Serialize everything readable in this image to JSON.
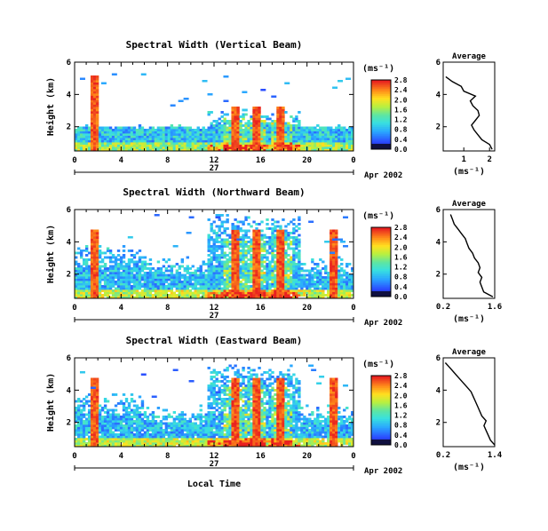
{
  "date_label": "Apr 2002",
  "day_label": "27",
  "xlabel": "Local Time",
  "units_label": "(ms⁻¹)",
  "chart_data": [
    {
      "type": "heatmap",
      "title": "Spectral Width (Vertical Beam)",
      "ylabel": "Height (km)",
      "xlabel": "",
      "xticks": [
        "0",
        "4",
        "8",
        "12",
        "16",
        "20",
        "0"
      ],
      "xlim": [
        0,
        24
      ],
      "yticks": [
        "6",
        "4",
        "2"
      ],
      "ylim": [
        0.5,
        6
      ],
      "colorbar": {
        "min": 0.0,
        "max": 2.8,
        "ticks": [
          "2.8",
          "2.4",
          "2.0",
          "1.6",
          "1.2",
          "0.8",
          "0.4",
          "0.0"
        ]
      },
      "high_width_columns_hours": [
        1.8,
        13.8,
        15.6,
        17.8
      ],
      "average_profile": {
        "title": "Average",
        "xlabel": "(ms⁻¹)",
        "xticks": [
          "1",
          "2"
        ],
        "xlim": [
          0.2,
          2.2
        ],
        "yticks": [
          "6",
          "4",
          "2"
        ],
        "ylim": [
          0.5,
          6
        ],
        "height_km": [
          0.6,
          0.9,
          1.2,
          1.5,
          1.8,
          2.1,
          2.4,
          2.7,
          3.0,
          3.3,
          3.6,
          3.9,
          4.2,
          4.5,
          4.8,
          5.1
        ],
        "value": [
          2.1,
          2.0,
          1.7,
          1.55,
          1.4,
          1.3,
          1.45,
          1.6,
          1.55,
          1.35,
          1.25,
          1.45,
          1.0,
          0.9,
          0.55,
          0.3
        ]
      }
    },
    {
      "type": "heatmap",
      "title": "Spectral Width (Northward Beam)",
      "ylabel": "Height (km)",
      "xlabel": "",
      "xticks": [
        "0",
        "4",
        "8",
        "12",
        "16",
        "20",
        "0"
      ],
      "xlim": [
        0,
        24
      ],
      "yticks": [
        "6",
        "4",
        "2"
      ],
      "ylim": [
        0.5,
        6
      ],
      "colorbar": {
        "min": 0.0,
        "max": 2.8,
        "ticks": [
          "2.8",
          "2.4",
          "2.0",
          "1.6",
          "1.2",
          "0.8",
          "0.4",
          "0.0"
        ]
      },
      "high_width_columns_hours": [
        1.8,
        13.8,
        15.6,
        17.8,
        22.3
      ],
      "average_profile": {
        "title": "Average",
        "xlabel": "(ms⁻¹)",
        "xticks": [
          "0.2",
          "1.6"
        ],
        "xlim": [
          0.2,
          1.6
        ],
        "yticks": [
          "6",
          "4",
          "2"
        ],
        "ylim": [
          0.5,
          6
        ],
        "height_km": [
          0.6,
          0.9,
          1.2,
          1.5,
          1.8,
          2.1,
          2.4,
          2.7,
          3.0,
          3.3,
          3.6,
          3.9,
          4.2,
          4.5,
          4.8,
          5.1,
          5.4,
          5.7
        ],
        "value": [
          1.55,
          1.3,
          1.25,
          1.2,
          1.25,
          1.15,
          1.2,
          1.15,
          1.05,
          1.0,
          0.9,
          0.85,
          0.8,
          0.7,
          0.6,
          0.5,
          0.45,
          0.4
        ]
      }
    },
    {
      "type": "heatmap",
      "title": "Spectral Width (Eastward Beam)",
      "ylabel": "Height (km)",
      "xlabel": "",
      "xticks": [
        "0",
        "4",
        "8",
        "12",
        "16",
        "20",
        "0"
      ],
      "xlim": [
        0,
        24
      ],
      "yticks": [
        "6",
        "4",
        "2"
      ],
      "ylim": [
        0.5,
        6
      ],
      "colorbar": {
        "min": 0.0,
        "max": 2.8,
        "ticks": [
          "2.8",
          "2.4",
          "2.0",
          "1.6",
          "1.2",
          "0.8",
          "0.4",
          "0.0"
        ]
      },
      "high_width_columns_hours": [
        1.8,
        13.8,
        15.6,
        17.8,
        22.3
      ],
      "average_profile": {
        "title": "Average",
        "xlabel": "(ms⁻¹)",
        "xticks": [
          "0.2",
          "1.4"
        ],
        "xlim": [
          0.2,
          1.4
        ],
        "yticks": [
          "6",
          "4",
          "2"
        ],
        "ylim": [
          0.5,
          6
        ],
        "height_km": [
          0.6,
          0.9,
          1.2,
          1.5,
          1.8,
          2.1,
          2.4,
          2.7,
          3.0,
          3.3,
          3.6,
          3.9,
          4.2,
          4.5,
          4.8,
          5.1,
          5.4,
          5.7
        ],
        "value": [
          1.4,
          1.3,
          1.25,
          1.2,
          1.15,
          1.2,
          1.1,
          1.05,
          1.0,
          0.95,
          0.9,
          0.85,
          0.75,
          0.65,
          0.55,
          0.45,
          0.35,
          0.25
        ]
      }
    }
  ]
}
